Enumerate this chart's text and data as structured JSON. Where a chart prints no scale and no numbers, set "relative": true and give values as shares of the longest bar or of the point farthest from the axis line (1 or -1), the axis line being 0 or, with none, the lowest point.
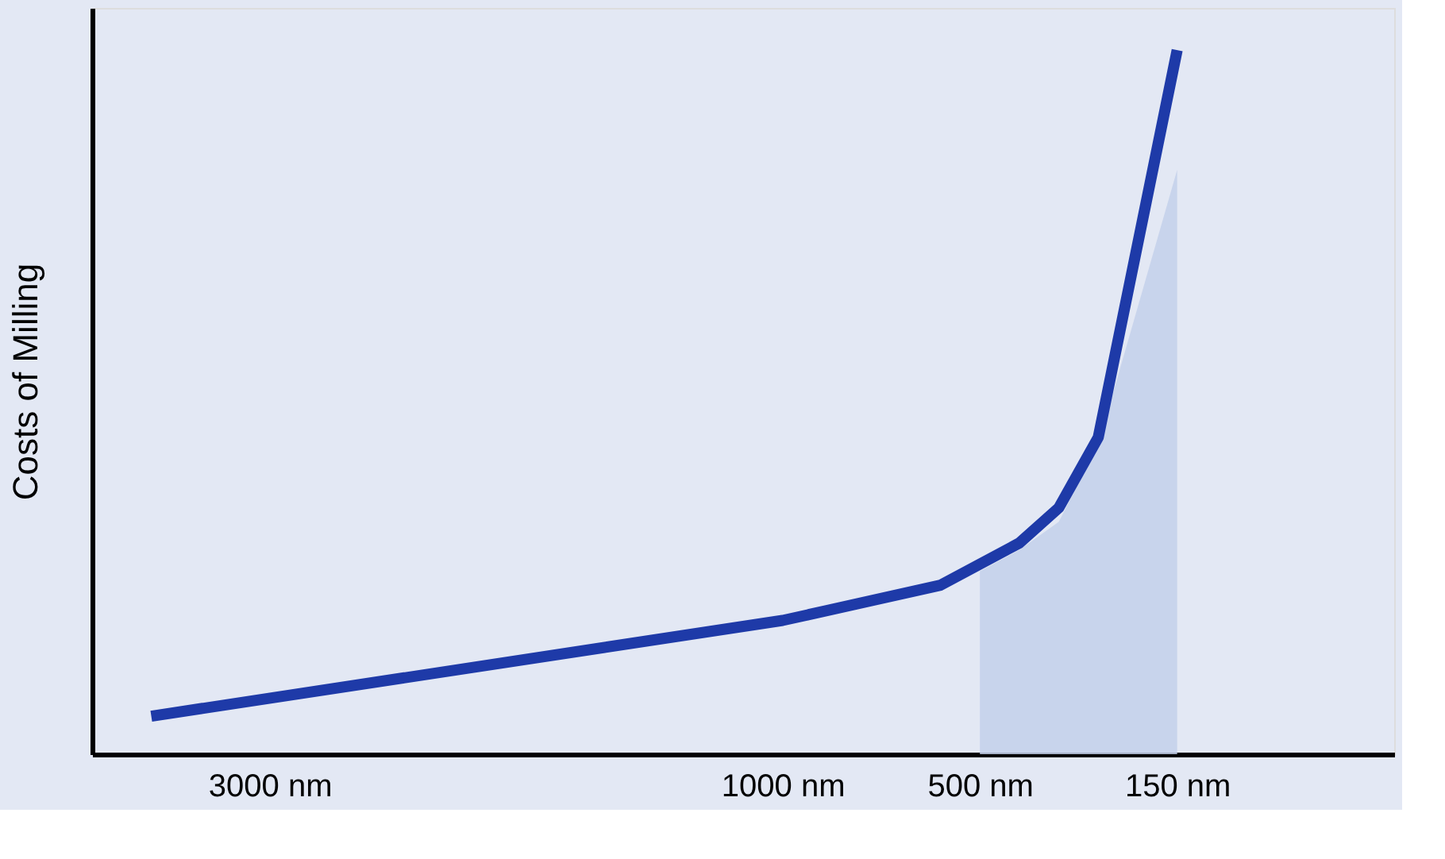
{
  "chart_data": {
    "type": "line",
    "ylabel": "Costs of Milling",
    "relative": true,
    "categories": [
      null,
      null,
      null,
      null,
      "3000 nm",
      null,
      null,
      null,
      null,
      null,
      null,
      null,
      null,
      null,
      null,
      null,
      null,
      "1000 nm",
      null,
      null,
      null,
      null,
      "500 nm",
      null,
      null,
      null,
      null,
      "150 nm",
      null,
      null,
      null,
      null,
      null
    ],
    "series": [
      {
        "type": "area",
        "color": "#c3d0ea",
        "values": [
          null,
          null,
          null,
          null,
          null,
          null,
          null,
          null,
          null,
          null,
          null,
          null,
          null,
          null,
          null,
          null,
          null,
          null,
          null,
          null,
          null,
          null,
          0.26,
          0.29,
          0.33,
          0.44,
          null,
          0.83,
          null,
          null,
          null,
          null,
          null
        ]
      },
      {
        "color": "#1e3aa8",
        "values": [
          null,
          0.054,
          null,
          null,
          null,
          null,
          null,
          null,
          null,
          null,
          null,
          null,
          null,
          null,
          null,
          null,
          null,
          0.19,
          null,
          null,
          null,
          0.24,
          null,
          0.3,
          0.35,
          0.45,
          null,
          1.0,
          null,
          null,
          null,
          null,
          null
        ]
      }
    ],
    "marker": "none",
    "line_style": "solid"
  }
}
